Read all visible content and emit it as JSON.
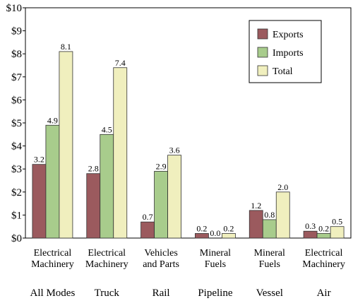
{
  "chart_data": {
    "type": "bar",
    "groups": [
      "All Modes",
      "Truck",
      "Rail",
      "Pipeline",
      "Vessel",
      "Air"
    ],
    "categories": [
      [
        "Electrical",
        "Machinery"
      ],
      [
        "Electrical",
        "Machinery"
      ],
      [
        "Vehicles",
        "and Parts"
      ],
      [
        "Mineral",
        "Fuels"
      ],
      [
        "Mineral",
        "Fuels"
      ],
      [
        "Electrical",
        "Machinery"
      ]
    ],
    "series": [
      {
        "name": "Exports",
        "color": "#9b5a5e",
        "values": [
          3.2,
          2.8,
          0.7,
          0.2,
          1.2,
          0.3
        ],
        "labels": [
          "3.2",
          "2.8",
          "0.7",
          "0.2",
          "1.2",
          "0.3"
        ]
      },
      {
        "name": "Imports",
        "color": "#a8cc8c",
        "values": [
          4.9,
          4.5,
          2.9,
          0.0,
          0.8,
          0.2
        ],
        "labels": [
          "4.9",
          "4.5",
          "2.9",
          "0.0",
          "0.8",
          "0.2"
        ]
      },
      {
        "name": "Total",
        "color": "#f0efbe",
        "values": [
          8.1,
          7.4,
          3.6,
          0.2,
          2.0,
          0.5
        ],
        "labels": [
          "8.1",
          "7.4",
          "3.6",
          "0.2",
          "2.0",
          "0.5"
        ]
      }
    ],
    "ylim": [
      0,
      10
    ],
    "yticks": [
      0,
      1,
      2,
      3,
      4,
      5,
      6,
      7,
      8,
      9,
      10
    ],
    "ytick_labels": [
      "$0",
      "$1",
      "$2",
      "$3",
      "$4",
      "$5",
      "$6",
      "$7",
      "$8",
      "$9",
      "$10"
    ],
    "legend_position": "top-right",
    "grid": false
  }
}
